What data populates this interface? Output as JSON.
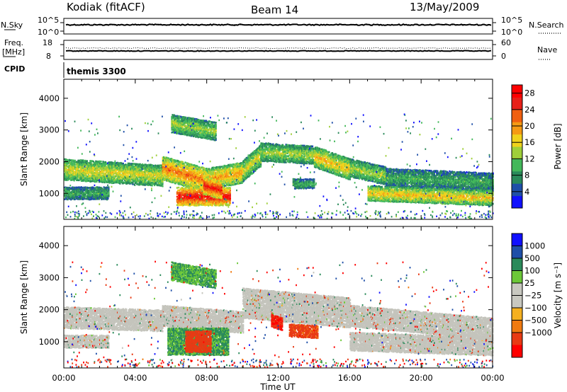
{
  "header": {
    "station": "Kodiak (fitACF)",
    "beam": "Beam 14",
    "date": "13/May/2009"
  },
  "aux": {
    "nsky_label": "N.Sky",
    "nsky_hi": "10^5",
    "nsky_lo": "10^0",
    "nsearch_label": "N.Search",
    "nsearch_hi": "10^5",
    "nsearch_lo": "10^0",
    "freq_label_1": "Freq.",
    "freq_label_2": "[MHz]",
    "freq_hi": "18",
    "freq_lo": "8",
    "nave_label": "Nave",
    "nave_hi": "60",
    "nave_lo": "0",
    "cpid_label": "CPID",
    "cpid_value": "themis 3300"
  },
  "colors": {
    "power_scale": [
      "#1010ff",
      "#1f4fa8",
      "#2a8a5a",
      "#43b85a",
      "#9fcf3a",
      "#f0d21c",
      "#f59a14",
      "#f06010",
      "#e82018",
      "#ff0000"
    ],
    "velocity_scale": [
      "#ff0000",
      "#e83a14",
      "#f07a10",
      "#f5b020",
      "#c8c8c0",
      "#c8c8c0",
      "#6cc838",
      "#2a8a5a",
      "#1f4fa8",
      "#1010ff"
    ],
    "ground_scatter": "#c4c4bc"
  },
  "chart_data": [
    {
      "type": "heatmap",
      "title": "Power",
      "ylabel": "Slant Range [km]",
      "xlabel": "Time UT",
      "x_ticks": [
        "00:00",
        "04:00",
        "08:00",
        "12:00",
        "16:00",
        "20:00",
        "00:00"
      ],
      "x_range_hours": [
        0,
        24
      ],
      "y_ticks": [
        "1000",
        "2000",
        "3000",
        "4000"
      ],
      "y_range_km": [
        180,
        4600
      ],
      "colorbar_label": "Power [dB]",
      "colorbar_ticks": [
        "4",
        "8",
        "12",
        "16",
        "20",
        "24",
        "28"
      ],
      "colorbar_range": [
        0,
        30
      ],
      "bands": [
        {
          "t_start": 0.0,
          "t_end": 5.5,
          "r_start": 1750,
          "r_end": 1550,
          "width": 320,
          "level": 16
        },
        {
          "t_start": 5.5,
          "t_end": 8.0,
          "r_start": 1800,
          "r_end": 1400,
          "width": 350,
          "level": 22
        },
        {
          "t_start": 8.0,
          "t_end": 10.0,
          "r_start": 1450,
          "r_end": 1650,
          "width": 300,
          "level": 20
        },
        {
          "t_start": 10.0,
          "t_end": 11.0,
          "r_start": 1700,
          "r_end": 2200,
          "width": 300,
          "level": 16
        },
        {
          "t_start": 11.0,
          "t_end": 14.0,
          "r_start": 2300,
          "r_end": 2200,
          "width": 280,
          "level": 14
        },
        {
          "t_start": 14.0,
          "t_end": 16.0,
          "r_start": 2150,
          "r_end": 1750,
          "width": 300,
          "level": 18
        },
        {
          "t_start": 16.0,
          "t_end": 18.0,
          "r_start": 1800,
          "r_end": 1550,
          "width": 280,
          "level": 14
        },
        {
          "t_start": 18.0,
          "t_end": 24.0,
          "r_start": 1500,
          "r_end": 1350,
          "width": 250,
          "level": 10
        },
        {
          "t_start": 0.0,
          "t_end": 2.5,
          "r_start": 1000,
          "r_end": 1000,
          "width": 200,
          "level": 10
        },
        {
          "t_start": 6.3,
          "t_end": 9.3,
          "r_start": 900,
          "r_end": 900,
          "width": 250,
          "level": 28
        },
        {
          "t_start": 7.8,
          "t_end": 8.8,
          "r_start": 1250,
          "r_end": 1100,
          "width": 250,
          "level": 27
        },
        {
          "t_start": 17.0,
          "t_end": 24.0,
          "r_start": 1000,
          "r_end": 850,
          "width": 220,
          "level": 18
        },
        {
          "t_start": 12.8,
          "t_end": 14.0,
          "r_start": 1300,
          "r_end": 1300,
          "width": 150,
          "level": 10
        },
        {
          "t_start": 6.0,
          "t_end": 8.5,
          "r_start": 3200,
          "r_end": 2950,
          "width": 250,
          "level": 14
        }
      ]
    },
    {
      "type": "heatmap",
      "title": "Velocity",
      "ylabel": "Slant Range [km]",
      "xlabel": "Time UT",
      "x_ticks": [
        "00:00",
        "04:00",
        "08:00",
        "12:00",
        "16:00",
        "20:00",
        "00:00"
      ],
      "x_range_hours": [
        0,
        24
      ],
      "y_ticks": [
        "1000",
        "2000",
        "3000",
        "4000"
      ],
      "y_range_km": [
        180,
        4600
      ],
      "colorbar_label": "Velocity [m s⁻¹]",
      "colorbar_ticks": [
        "1000",
        "500",
        "100",
        "25",
        "−25",
        "−100",
        "−500",
        "−1000"
      ],
      "bands": [
        {
          "t_start": 0.0,
          "t_end": 5.5,
          "r_start": 1750,
          "r_end": 1650,
          "width": 320,
          "velocity": 0
        },
        {
          "t_start": 5.5,
          "t_end": 10.0,
          "r_start": 1800,
          "r_end": 1600,
          "width": 300,
          "velocity": 0
        },
        {
          "t_start": 10.0,
          "t_end": 16.0,
          "r_start": 2200,
          "r_end": 1900,
          "width": 450,
          "velocity": 0
        },
        {
          "t_start": 16.0,
          "t_end": 24.0,
          "r_start": 1800,
          "r_end": 1400,
          "width": 300,
          "velocity": 0
        },
        {
          "t_start": 16.0,
          "t_end": 24.0,
          "r_start": 1000,
          "r_end": 850,
          "width": 250,
          "velocity": 0
        },
        {
          "t_start": 0.0,
          "t_end": 2.5,
          "r_start": 1000,
          "r_end": 1000,
          "width": 200,
          "velocity": 0
        },
        {
          "t_start": 5.8,
          "t_end": 9.2,
          "r_start": 1000,
          "r_end": 1000,
          "width": 420,
          "velocity": 120
        },
        {
          "t_start": 6.8,
          "t_end": 8.2,
          "r_start": 1000,
          "r_end": 1000,
          "width": 300,
          "velocity": -200
        },
        {
          "t_start": 12.6,
          "t_end": 14.2,
          "r_start": 1350,
          "r_end": 1300,
          "width": 180,
          "velocity": -150
        },
        {
          "t_start": 11.6,
          "t_end": 12.2,
          "r_start": 1650,
          "r_end": 1550,
          "width": 180,
          "velocity": -500
        },
        {
          "t_start": 6.0,
          "t_end": 8.5,
          "r_start": 3200,
          "r_end": 2950,
          "width": 250,
          "velocity": 100
        }
      ]
    }
  ]
}
